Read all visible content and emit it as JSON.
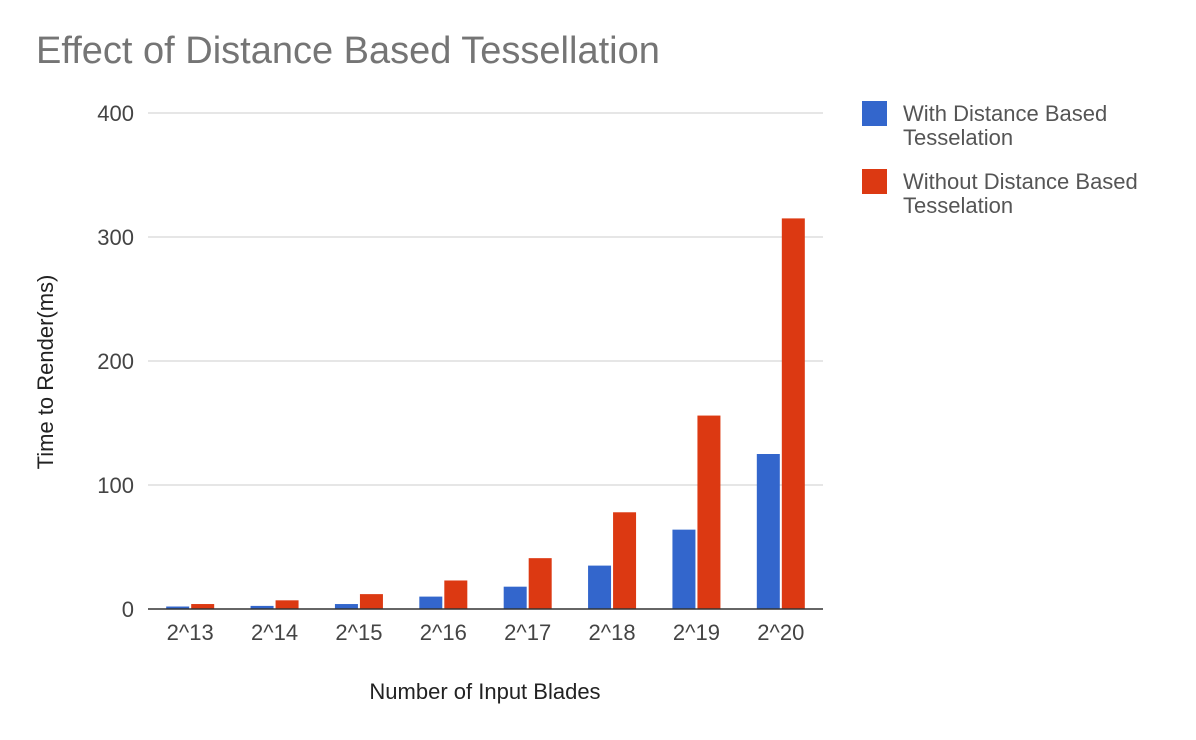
{
  "chart_data": {
    "type": "bar",
    "title": "Effect of Distance Based Tessellation",
    "xlabel": "Number of Input Blades",
    "ylabel": "Time to Render(ms)",
    "ylim": [
      0,
      400
    ],
    "yticks": [
      0,
      100,
      200,
      300,
      400
    ],
    "grid": true,
    "legend_position": "right",
    "categories": [
      "2^13",
      "2^14",
      "2^15",
      "2^16",
      "2^17",
      "2^18",
      "2^19",
      "2^20"
    ],
    "series": [
      {
        "name": "With Distance Based Tesselation",
        "color": "#3366cc",
        "values": [
          2,
          2.5,
          4,
          10,
          18,
          35,
          64,
          125
        ]
      },
      {
        "name": "Without Distance Based Tesselation",
        "color": "#dc3912",
        "values": [
          4,
          7,
          12,
          23,
          41,
          78,
          156,
          315
        ]
      }
    ]
  }
}
